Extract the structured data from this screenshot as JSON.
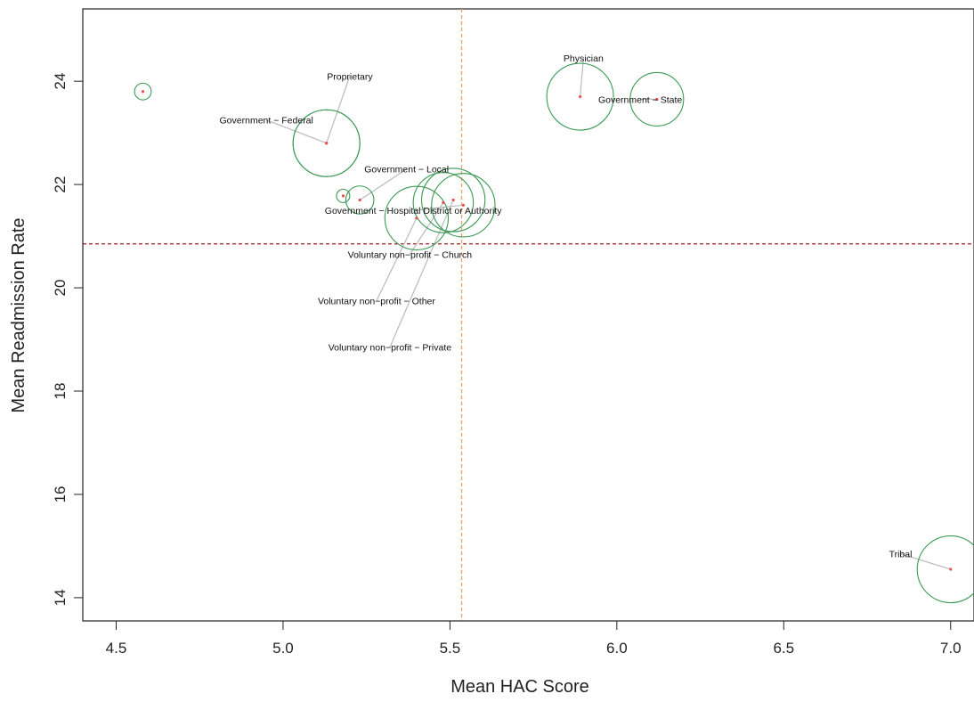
{
  "chart_data": {
    "type": "scatter",
    "title": "",
    "xlabel": "Mean HAC Score",
    "ylabel": "Mean Readmission Rate",
    "xlim": [
      4.4,
      7.07
    ],
    "ylim": [
      13.55,
      25.4
    ],
    "x_ticks": [
      4.5,
      5.0,
      5.5,
      6.0,
      6.5,
      7.0
    ],
    "x_tick_labels": [
      "4.5",
      "5.0",
      "5.5",
      "6.0",
      "6.5",
      "7.0"
    ],
    "y_ticks": [
      14,
      16,
      18,
      20,
      22,
      24
    ],
    "y_tick_labels": [
      "14",
      "16",
      "18",
      "20",
      "22",
      "24"
    ],
    "grid": false,
    "reference_lines": {
      "vertical_x": 5.535,
      "horizontal_y": 20.85,
      "vertical_color": "#f0a060",
      "horizontal_color": "#a02020"
    },
    "colors": {
      "bubble_stroke": "#3a9a55",
      "point": "#e85050",
      "leader_line": "#bbbbbb",
      "axis": "#222222"
    },
    "points": [
      {
        "label": "",
        "x": 4.58,
        "y": 23.8,
        "radius": 0.025,
        "label_x": null,
        "label_y": null
      },
      {
        "label": "Proprietary",
        "x": 5.13,
        "y": 22.8,
        "radius": 0.1,
        "label_x": 5.2,
        "label_y": 24.1
      },
      {
        "label": "Government − Federal",
        "x": 5.13,
        "y": 22.8,
        "radius": 0.1,
        "label_x": 4.95,
        "label_y": 23.25
      },
      {
        "label": "",
        "x": 5.18,
        "y": 21.78,
        "radius": 0.02,
        "label_x": null,
        "label_y": null
      },
      {
        "label": "Government − Local",
        "x": 5.23,
        "y": 21.7,
        "radius": 0.042,
        "label_x": 5.37,
        "label_y": 22.3
      },
      {
        "label": "Government − Hospital District or Authority",
        "x": 5.54,
        "y": 21.6,
        "radius": 0.095,
        "label_x": 5.39,
        "label_y": 21.5
      },
      {
        "label": "Voluntary non−profit − Church",
        "x": 5.48,
        "y": 21.65,
        "radius": 0.09,
        "label_x": 5.38,
        "label_y": 20.65
      },
      {
        "label": "Voluntary non−profit − Other",
        "x": 5.4,
        "y": 21.35,
        "radius": 0.095,
        "label_x": 5.28,
        "label_y": 19.75
      },
      {
        "label": "Voluntary non−profit − Private",
        "x": 5.51,
        "y": 21.7,
        "radius": 0.095,
        "label_x": 5.32,
        "label_y": 18.85
      },
      {
        "label": "Physician",
        "x": 5.89,
        "y": 23.7,
        "radius": 0.1,
        "label_x": 5.9,
        "label_y": 24.45
      },
      {
        "label": "Government − State",
        "x": 6.12,
        "y": 23.65,
        "radius": 0.08,
        "label_x": 6.07,
        "label_y": 23.65
      },
      {
        "label": "Tribal",
        "x": 7.0,
        "y": 14.55,
        "radius": 0.1,
        "label_x": 6.85,
        "label_y": 14.85
      }
    ]
  }
}
